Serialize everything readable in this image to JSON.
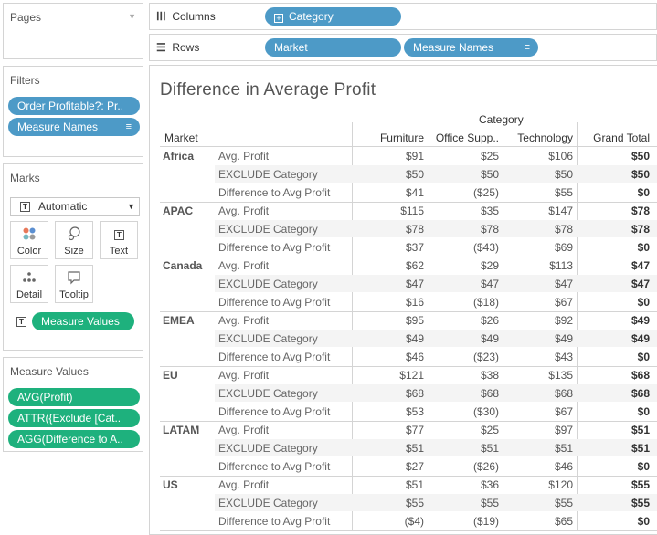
{
  "left_panel": {
    "pages": {
      "title": "Pages"
    },
    "filters": {
      "title": "Filters",
      "pills": [
        "Order Profitable?: Pr..",
        "Measure Names"
      ]
    },
    "marks": {
      "title": "Marks",
      "type_select": "Automatic",
      "buttons": {
        "color": "Color",
        "size": "Size",
        "text": "Text",
        "detail": "Detail",
        "tooltip": "Tooltip"
      },
      "text_pill": "Measure Values"
    },
    "measure_values": {
      "title": "Measure Values",
      "pills": [
        "AVG(Profit)",
        "ATTR({Exclude [Cat..",
        "AGG(Difference to A.."
      ]
    }
  },
  "shelves": {
    "columns": {
      "label": "Columns",
      "pills": [
        "Category"
      ]
    },
    "rows": {
      "label": "Rows",
      "pills": [
        "Market",
        "Measure Names"
      ]
    }
  },
  "view": {
    "title": "Difference in Average Profit",
    "category_header": "Category",
    "market_header": "Market",
    "columns": [
      "Furniture",
      "Office Supp..",
      "Technology",
      "Grand Total"
    ],
    "measures": [
      "Avg. Profit",
      "EXCLUDE Category",
      "Difference to Avg Profit"
    ],
    "markets": [
      {
        "name": "Africa",
        "rows": [
          [
            "$91",
            "$25",
            "$106",
            "$50"
          ],
          [
            "$50",
            "$50",
            "$50",
            "$50"
          ],
          [
            "$41",
            "($25)",
            "$55",
            "$0"
          ]
        ]
      },
      {
        "name": "APAC",
        "rows": [
          [
            "$115",
            "$35",
            "$147",
            "$78"
          ],
          [
            "$78",
            "$78",
            "$78",
            "$78"
          ],
          [
            "$37",
            "($43)",
            "$69",
            "$0"
          ]
        ]
      },
      {
        "name": "Canada",
        "rows": [
          [
            "$62",
            "$29",
            "$113",
            "$47"
          ],
          [
            "$47",
            "$47",
            "$47",
            "$47"
          ],
          [
            "$16",
            "($18)",
            "$67",
            "$0"
          ]
        ]
      },
      {
        "name": "EMEA",
        "rows": [
          [
            "$95",
            "$26",
            "$92",
            "$49"
          ],
          [
            "$49",
            "$49",
            "$49",
            "$49"
          ],
          [
            "$46",
            "($23)",
            "$43",
            "$0"
          ]
        ]
      },
      {
        "name": "EU",
        "rows": [
          [
            "$121",
            "$38",
            "$135",
            "$68"
          ],
          [
            "$68",
            "$68",
            "$68",
            "$68"
          ],
          [
            "$53",
            "($30)",
            "$67",
            "$0"
          ]
        ]
      },
      {
        "name": "LATAM",
        "rows": [
          [
            "$77",
            "$25",
            "$97",
            "$51"
          ],
          [
            "$51",
            "$51",
            "$51",
            "$51"
          ],
          [
            "$27",
            "($26)",
            "$46",
            "$0"
          ]
        ]
      },
      {
        "name": "US",
        "rows": [
          [
            "$51",
            "$36",
            "$120",
            "$55"
          ],
          [
            "$55",
            "$55",
            "$55",
            "$55"
          ],
          [
            "($4)",
            "($19)",
            "$65",
            "$0"
          ]
        ]
      }
    ]
  }
}
